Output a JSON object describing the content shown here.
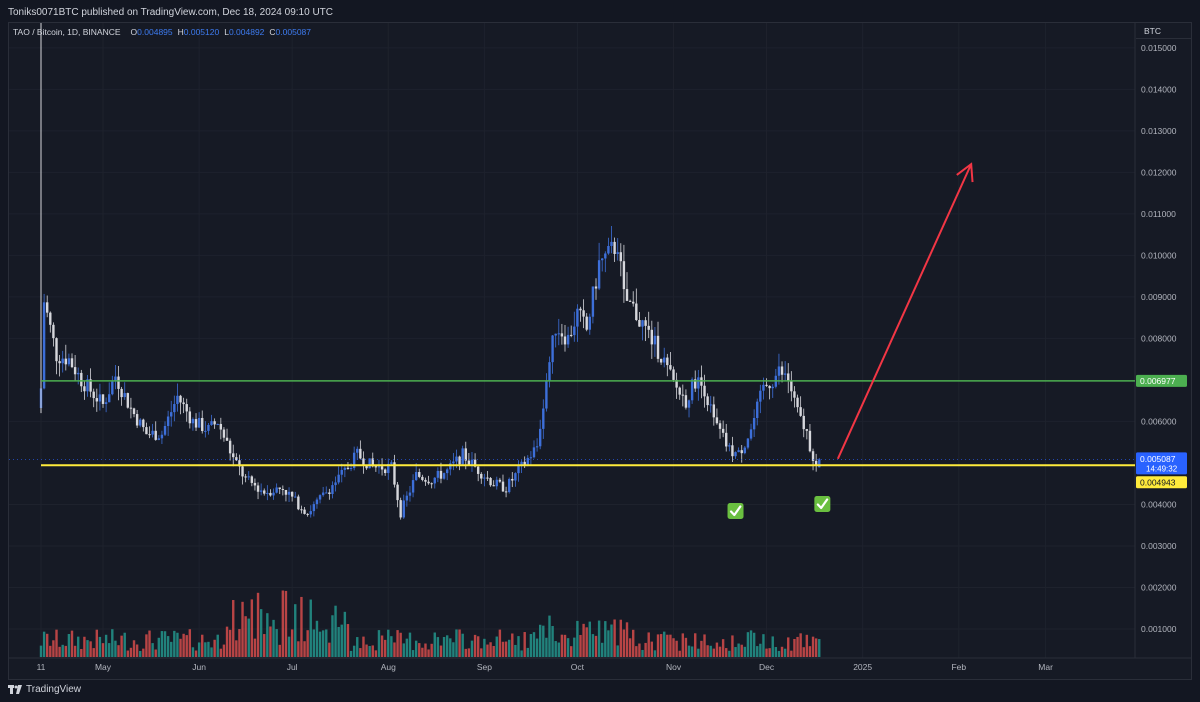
{
  "header": {
    "publish_info": "Toniks0071BTC published on TradingView.com, Dec 18, 2024 09:10 UTC"
  },
  "legend": {
    "symbol": "TAO / Bitcoin, 1D, BINANCE",
    "open_label": "O",
    "open": "0.004895",
    "high_label": "H",
    "high": "0.005120",
    "low_label": "L",
    "low": "0.004892",
    "close_label": "C",
    "close": "0.005087"
  },
  "price_axis": {
    "currency": "BTC",
    "ticks": [
      "0.015000",
      "0.014000",
      "0.013000",
      "0.012000",
      "0.011000",
      "0.010000",
      "0.009000",
      "0.008000",
      "0.006000",
      "0.004000",
      "0.003000",
      "0.002000",
      "0.001000"
    ]
  },
  "badges": {
    "green_line_price": "0.006977",
    "current_price": "0.005087",
    "countdown": "14:49:32",
    "yellow_line_price": "0.004943"
  },
  "time_axis": {
    "labels": [
      "11",
      "May",
      "Jun",
      "Jul",
      "Aug",
      "Sep",
      "Oct",
      "Nov",
      "Dec",
      "2025",
      "Feb",
      "Mar"
    ]
  },
  "footer": {
    "brand": "TradingView"
  },
  "colors": {
    "background": "#161a25",
    "up_candle": "#3d6fd9",
    "down_candle": "#d6d7dc",
    "volume_up": "#26a69a",
    "volume_down": "#ef5350",
    "green_line": "#4caf50",
    "yellow_line": "#ffeb3b",
    "arrow": "#f23645",
    "current_price_badge": "#2962ff",
    "check_mark": "#6abf40"
  },
  "chart_data": {
    "type": "candlestick",
    "symbol": "TAO / Bitcoin, 1D, BINANCE",
    "y_axis_unit": "BTC",
    "ylim": [
      0.0003,
      0.0156
    ],
    "x_range": [
      "2024-04-11",
      "2025-03-25"
    ],
    "last": {
      "open": 0.004895,
      "high": 0.00512,
      "low": 0.004892,
      "close": 0.005087
    },
    "horizontal_lines": [
      {
        "price": 0.006977,
        "color": "green"
      },
      {
        "price": 0.004943,
        "color": "yellow"
      }
    ],
    "close_path": [
      [
        "2024-04-11",
        0.0068
      ],
      [
        "2024-04-12",
        0.0089
      ],
      [
        "2024-04-16",
        0.0076
      ],
      [
        "2024-04-20",
        0.0075
      ],
      [
        "2024-04-24",
        0.007
      ],
      [
        "2024-05-01",
        0.0064
      ],
      [
        "2024-05-05",
        0.0071
      ],
      [
        "2024-05-10",
        0.0063
      ],
      [
        "2024-05-15",
        0.0057
      ],
      [
        "2024-05-20",
        0.0057
      ],
      [
        "2024-05-25",
        0.0066
      ],
      [
        "2024-05-30",
        0.006
      ],
      [
        "2024-06-04",
        0.0058
      ],
      [
        "2024-06-07",
        0.006
      ],
      [
        "2024-06-12",
        0.0051
      ],
      [
        "2024-06-16",
        0.0046
      ],
      [
        "2024-06-22",
        0.0043
      ],
      [
        "2024-06-28",
        0.0044
      ],
      [
        "2024-07-03",
        0.004
      ],
      [
        "2024-07-06",
        0.0038
      ],
      [
        "2024-07-12",
        0.0043
      ],
      [
        "2024-07-18",
        0.0048
      ],
      [
        "2024-07-22",
        0.0052
      ],
      [
        "2024-07-27",
        0.0049
      ],
      [
        "2024-08-02",
        0.0049
      ],
      [
        "2024-08-05",
        0.0038
      ],
      [
        "2024-08-10",
        0.0047
      ],
      [
        "2024-08-15",
        0.0046
      ],
      [
        "2024-08-20",
        0.0048
      ],
      [
        "2024-08-25",
        0.0052
      ],
      [
        "2024-08-29",
        0.0049
      ],
      [
        "2024-09-04",
        0.0045
      ],
      [
        "2024-09-08",
        0.0044
      ],
      [
        "2024-09-13",
        0.0049
      ],
      [
        "2024-09-18",
        0.0054
      ],
      [
        "2024-09-21",
        0.007
      ],
      [
        "2024-09-24",
        0.0083
      ],
      [
        "2024-09-28",
        0.008
      ],
      [
        "2024-10-01",
        0.0086
      ],
      [
        "2024-10-04",
        0.0082
      ],
      [
        "2024-10-08",
        0.0098
      ],
      [
        "2024-10-11",
        0.01
      ],
      [
        "2024-10-14",
        0.0103
      ],
      [
        "2024-10-16",
        0.009
      ],
      [
        "2024-10-19",
        0.0087
      ],
      [
        "2024-10-24",
        0.0081
      ],
      [
        "2024-10-28",
        0.0076
      ],
      [
        "2024-11-01",
        0.0069
      ],
      [
        "2024-11-05",
        0.0065
      ],
      [
        "2024-11-08",
        0.007
      ],
      [
        "2024-11-11",
        0.0068
      ],
      [
        "2024-11-14",
        0.006
      ],
      [
        "2024-11-19",
        0.0053
      ],
      [
        "2024-11-22",
        0.0052
      ],
      [
        "2024-11-26",
        0.0058
      ],
      [
        "2024-11-30",
        0.0068
      ],
      [
        "2024-12-03",
        0.007
      ],
      [
        "2024-12-05",
        0.0072
      ],
      [
        "2024-12-08",
        0.007
      ],
      [
        "2024-12-11",
        0.0062
      ],
      [
        "2024-12-14",
        0.0057
      ],
      [
        "2024-12-17",
        0.0049
      ],
      [
        "2024-12-18",
        0.005087
      ]
    ]
  }
}
